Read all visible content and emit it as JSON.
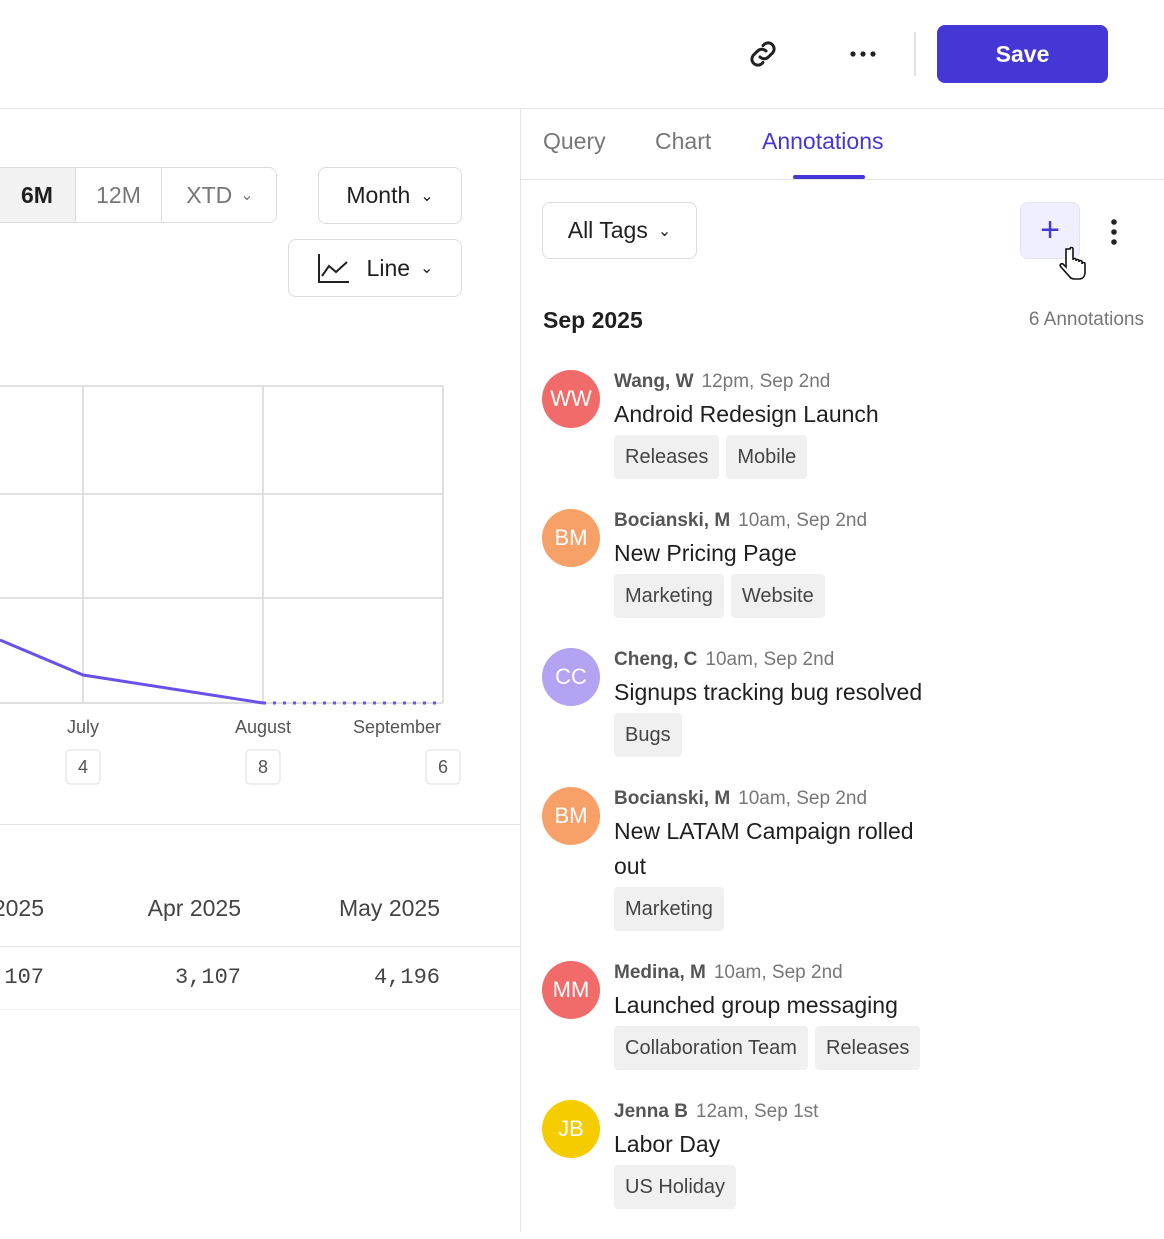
{
  "toolbar": {
    "save": "Save"
  },
  "controls": {
    "ranges": [
      "6M",
      "12M",
      "XTD"
    ],
    "granularity": "Month",
    "chart_type": "Line"
  },
  "chart": {
    "categories": [
      "July",
      "August",
      "September"
    ],
    "annotation_counts": [
      "4",
      "8",
      "6"
    ]
  },
  "table": {
    "headers": [
      "2025",
      "Apr 2025",
      "May 2025"
    ],
    "values": [
      "107",
      "3,107",
      "4,196"
    ]
  },
  "panel": {
    "tabs": [
      "Query",
      "Chart",
      "Annotations"
    ],
    "filter": "All Tags",
    "month": "Sep 2025",
    "count": "6 Annotations",
    "items": [
      {
        "initials": "WW",
        "color": "#f26b6b",
        "author": "Wang, W",
        "time": "12pm, Sep 2nd",
        "title": "Android Redesign Launch",
        "tags": [
          "Releases",
          "Mobile"
        ]
      },
      {
        "initials": "BM",
        "color": "#f7a068",
        "author": "Bocianski, M",
        "time": "10am, Sep 2nd",
        "title": "New Pricing Page",
        "tags": [
          "Marketing",
          "Website"
        ]
      },
      {
        "initials": "CC",
        "color": "#b3a3f2",
        "author": "Cheng, C",
        "time": "10am, Sep 2nd",
        "title": "Signups tracking bug resolved",
        "tags": [
          "Bugs"
        ]
      },
      {
        "initials": "BM",
        "color": "#f7a068",
        "author": "Bocianski, M",
        "time": "10am, Sep 2nd",
        "title": "New LATAM Campaign rolled out",
        "tags": [
          "Marketing"
        ]
      },
      {
        "initials": "MM",
        "color": "#f26b6b",
        "author": "Medina, M",
        "time": "10am, Sep 2nd",
        "title": "Launched group messaging",
        "tags": [
          "Collaboration Team",
          "Releases"
        ]
      },
      {
        "initials": "JB",
        "color": "#f5cc00",
        "author": "Jenna B",
        "time": "12am, Sep 1st",
        "title": "Labor Day",
        "tags": [
          "US Holiday"
        ]
      }
    ]
  }
}
